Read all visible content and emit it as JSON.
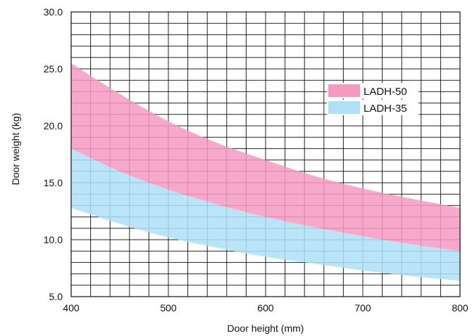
{
  "chart_data": {
    "type": "area",
    "title": "",
    "xlabel": "Door height (mm)",
    "ylabel": "Door weight (kg)",
    "xlim": [
      400,
      800
    ],
    "ylim": [
      5.0,
      30.0
    ],
    "x_ticks": [
      "400",
      "500",
      "600",
      "700",
      "800"
    ],
    "y_ticks": [
      "5.0",
      "10.0",
      "15.0",
      "20.0",
      "25.0",
      "30.0"
    ],
    "grid": true,
    "legend_position": "right",
    "x": [
      400,
      450,
      500,
      550,
      600,
      650,
      700,
      750,
      800
    ],
    "series": [
      {
        "name": "LADH-50",
        "color": "#f49ac1",
        "upper": [
          25.5,
          22.8,
          20.4,
          18.5,
          17.0,
          15.6,
          14.5,
          13.6,
          12.8
        ],
        "lower": [
          18.0,
          16.0,
          14.4,
          13.1,
          12.0,
          11.1,
          10.3,
          9.6,
          9.0
        ]
      },
      {
        "name": "LADH-35",
        "color": "#aee0f7",
        "upper": [
          18.0,
          16.0,
          14.4,
          13.1,
          12.0,
          11.1,
          10.3,
          9.6,
          9.0
        ],
        "lower": [
          12.8,
          11.4,
          10.2,
          9.3,
          8.5,
          7.9,
          7.3,
          6.8,
          6.4
        ]
      }
    ]
  }
}
